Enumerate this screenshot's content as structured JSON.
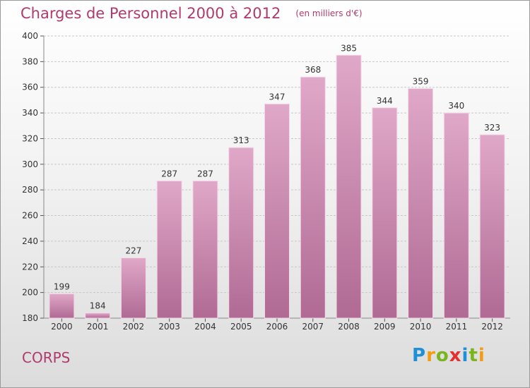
{
  "chart_data": {
    "type": "bar",
    "title": "Charges de Personnel 2000 à 2012",
    "subtitle": "(en milliers d'€)",
    "categories": [
      "2000",
      "2001",
      "2002",
      "2003",
      "2004",
      "2005",
      "2006",
      "2007",
      "2008",
      "2009",
      "2010",
      "2011",
      "2012"
    ],
    "values": [
      199,
      184,
      227,
      287,
      287,
      313,
      347,
      368,
      385,
      344,
      359,
      340,
      323
    ],
    "ylim": [
      180,
      400
    ],
    "yticks": [
      180,
      200,
      220,
      240,
      260,
      280,
      300,
      320,
      340,
      360,
      380,
      400
    ],
    "grid": true,
    "bar_color_top": "#e0a8c8",
    "bar_color_bottom": "#b06a94",
    "accent_color": "#b03a6e"
  },
  "commune": "CORPS",
  "brand": {
    "letters": [
      "P",
      "r",
      "o",
      "x",
      "i",
      "t",
      "i"
    ],
    "colors": [
      "#1f8fd6",
      "#f39c12",
      "#7ab51d",
      "#e2322f",
      "#1f8fd6",
      "#7ab51d",
      "#f39c12"
    ]
  }
}
